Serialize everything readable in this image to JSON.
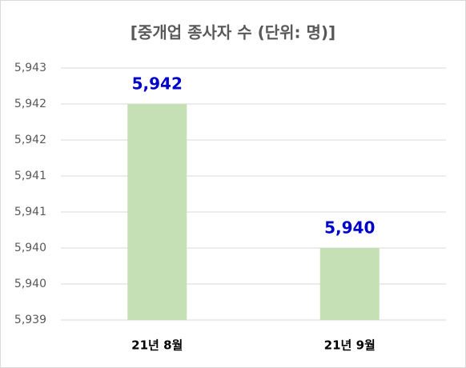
{
  "chart_data": {
    "type": "bar",
    "title": "[중개업 종사자 수 (단위: 명)]",
    "categories": [
      "21년 8월",
      "21년 9월"
    ],
    "values": [
      5942,
      5940
    ],
    "value_labels": [
      "5,942",
      "5,940"
    ],
    "color": "#c5e0b4",
    "label_color": "#0000cc",
    "ylim": [
      5939,
      5942.5
    ],
    "yticks": [
      {
        "value": 5939,
        "label": "5,939"
      },
      {
        "value": 5939.5,
        "label": "5,940"
      },
      {
        "value": 5940,
        "label": "5,940"
      },
      {
        "value": 5940.5,
        "label": "5,941"
      },
      {
        "value": 5941,
        "label": "5,941"
      },
      {
        "value": 5941.5,
        "label": "5,942"
      },
      {
        "value": 5942,
        "label": "5,942"
      },
      {
        "value": 5942.5,
        "label": "5,943"
      }
    ],
    "grid": true
  }
}
